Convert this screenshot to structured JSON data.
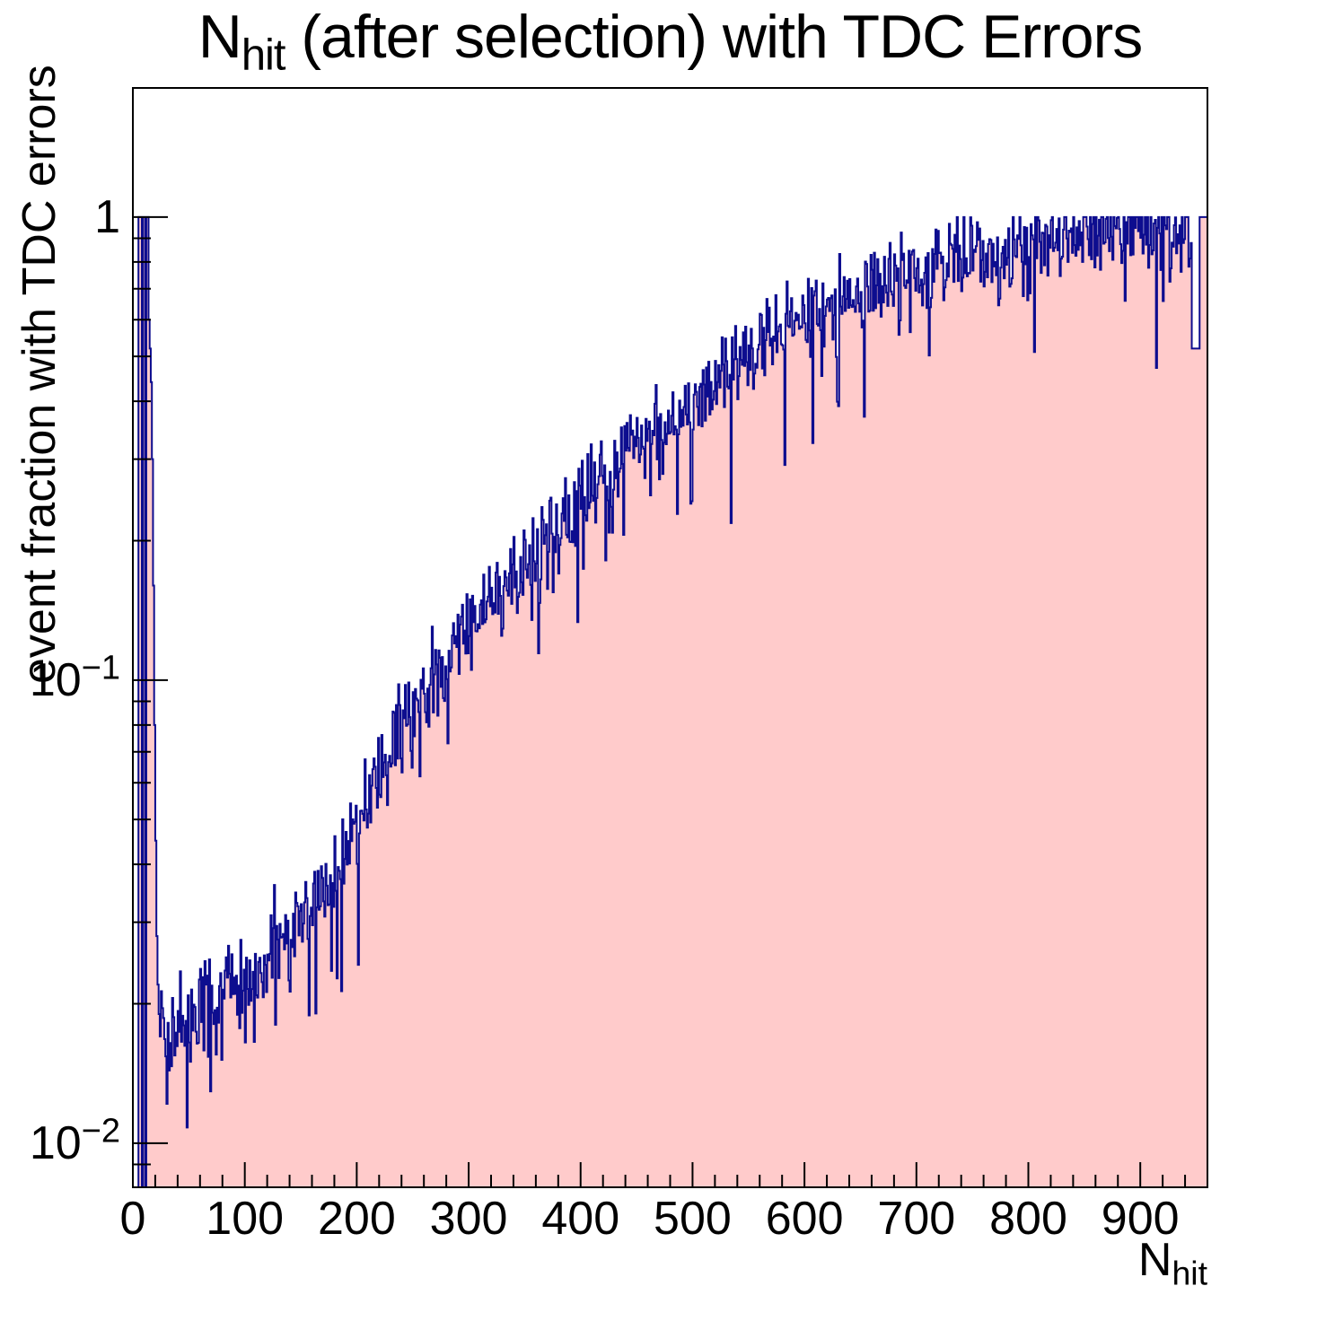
{
  "page": {
    "background": "#ffffff"
  },
  "chart_data": {
    "type": "histogram",
    "title_parts": {
      "pre": "N",
      "sub": "hit",
      "post": " (after selection) with TDC Errors"
    },
    "ylabel": "event fraction with TDC errors",
    "xlabel_parts": {
      "pre": "N",
      "sub": "hit"
    },
    "x_range": [
      0,
      960
    ],
    "n_bins": 960,
    "y_scale": "log",
    "y_range": [
      0.00803,
      1.9
    ],
    "grid": false,
    "legend": "none",
    "fill_color": "#ffcbcb",
    "line_color": "#0d0d8f",
    "frame_color": "#000000",
    "x_major_ticks": [
      {
        "v": 0,
        "label": "0"
      },
      {
        "v": 100,
        "label": "100"
      },
      {
        "v": 200,
        "label": "200"
      },
      {
        "v": 300,
        "label": "300"
      },
      {
        "v": 400,
        "label": "400"
      },
      {
        "v": 500,
        "label": "500"
      },
      {
        "v": 600,
        "label": "600"
      },
      {
        "v": 700,
        "label": "700"
      },
      {
        "v": 800,
        "label": "800"
      },
      {
        "v": 900,
        "label": "900"
      }
    ],
    "x_minor_step": 20,
    "y_major_ticks": [
      {
        "v": 1,
        "base": "1",
        "exp": ""
      },
      {
        "v": 0.1,
        "base": "10",
        "exp": "−1"
      },
      {
        "v": 0.01,
        "base": "10",
        "exp": "−2"
      }
    ],
    "low_bins": [
      0,
      0,
      0,
      0,
      0,
      1,
      1,
      1,
      0,
      1,
      1,
      0,
      1,
      1,
      0.6,
      0.52,
      0.44,
      0.3,
      0.16,
      0.08,
      0.045,
      0.028,
      0.022,
      0.019,
      0.017
    ],
    "trend": [
      [
        25,
        0.019
      ],
      [
        30,
        0.0165
      ],
      [
        40,
        0.0175
      ],
      [
        50,
        0.0185
      ],
      [
        60,
        0.019
      ],
      [
        80,
        0.0205
      ],
      [
        100,
        0.0215
      ],
      [
        120,
        0.0245
      ],
      [
        140,
        0.028
      ],
      [
        160,
        0.033
      ],
      [
        180,
        0.038
      ],
      [
        200,
        0.047
      ],
      [
        220,
        0.062
      ],
      [
        240,
        0.078
      ],
      [
        260,
        0.094
      ],
      [
        280,
        0.113
      ],
      [
        300,
        0.133
      ],
      [
        320,
        0.15
      ],
      [
        340,
        0.168
      ],
      [
        360,
        0.19
      ],
      [
        380,
        0.215
      ],
      [
        400,
        0.243
      ],
      [
        420,
        0.27
      ],
      [
        440,
        0.31
      ],
      [
        460,
        0.335
      ],
      [
        480,
        0.36
      ],
      [
        500,
        0.4
      ],
      [
        520,
        0.44
      ],
      [
        540,
        0.48
      ],
      [
        560,
        0.52
      ],
      [
        580,
        0.555
      ],
      [
        600,
        0.6
      ],
      [
        620,
        0.635
      ],
      [
        640,
        0.665
      ],
      [
        660,
        0.7
      ],
      [
        680,
        0.73
      ],
      [
        700,
        0.75
      ],
      [
        720,
        0.77
      ],
      [
        740,
        0.8
      ],
      [
        760,
        0.83
      ],
      [
        780,
        0.855
      ],
      [
        800,
        0.875
      ],
      [
        820,
        0.89
      ],
      [
        840,
        0.91
      ],
      [
        860,
        0.93
      ],
      [
        880,
        0.95
      ],
      [
        900,
        0.965
      ],
      [
        920,
        0.975
      ],
      [
        945,
        0.985
      ]
    ],
    "noise_sigma_log10": 0.05,
    "dip_probability": 0.06,
    "noise_seed": 42,
    "end_dip": {
      "from": 946,
      "to": 952,
      "value": 0.52,
      "tail_value": 1.0
    }
  }
}
